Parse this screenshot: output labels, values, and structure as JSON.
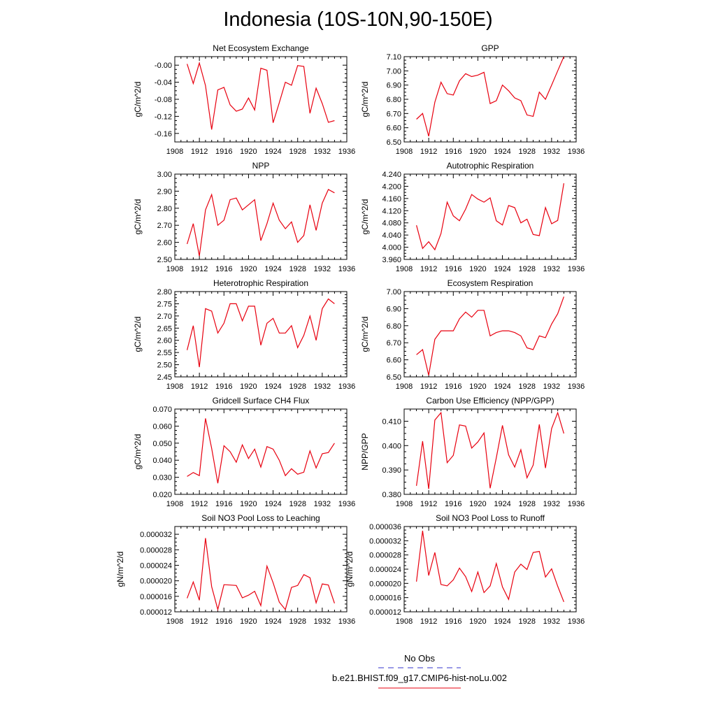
{
  "title": "Indonesia (10S-10N,90-150E)",
  "x_ticks": [
    1908,
    1912,
    1916,
    1920,
    1924,
    1928,
    1932,
    1936
  ],
  "x_range": [
    1908,
    1936
  ],
  "years": [
    1910,
    1911,
    1912,
    1913,
    1914,
    1915,
    1916,
    1917,
    1918,
    1919,
    1920,
    1921,
    1922,
    1923,
    1924,
    1925,
    1926,
    1927,
    1928,
    1929,
    1930,
    1931,
    1932,
    1933,
    1934
  ],
  "line_color": "#e8000f",
  "legend": {
    "obs_label": "No Obs",
    "obs_color": "#3333cc",
    "model_label": "b.e21.BHIST.f09_g17.CMIP6-hist-noLu.002",
    "model_color": "#e8000f"
  },
  "chart_data": [
    {
      "type": "line",
      "title": "Net Ecosystem Exchange",
      "ylabel": "gC/m^2/d",
      "ylim": [
        -0.18,
        0.02
      ],
      "yticks": [
        -0.16,
        -0.12,
        -0.08,
        -0.04,
        -0.0
      ],
      "ytick_labels": [
        "-0.16",
        "-0.12",
        "-0.08",
        "-0.04",
        "-0.00"
      ],
      "values": [
        0.003,
        -0.043,
        0.005,
        -0.048,
        -0.151,
        -0.058,
        -0.052,
        -0.093,
        -0.108,
        -0.103,
        -0.077,
        -0.105,
        -0.007,
        -0.012,
        -0.135,
        -0.088,
        -0.04,
        -0.047,
        -0.001,
        -0.003,
        -0.113,
        -0.054,
        -0.09,
        -0.134,
        -0.13
      ]
    },
    {
      "type": "line",
      "title": "GPP",
      "ylabel": "gC/m^2/d",
      "ylim": [
        6.5,
        7.1
      ],
      "yticks": [
        6.5,
        6.6,
        6.7,
        6.8,
        6.9,
        7.0,
        7.1
      ],
      "ytick_labels": [
        "6.50",
        "6.60",
        "6.70",
        "6.80",
        "6.90",
        "7.00",
        "7.10"
      ],
      "values": [
        6.66,
        6.7,
        6.54,
        6.78,
        6.92,
        6.84,
        6.83,
        6.93,
        6.98,
        6.96,
        6.97,
        6.99,
        6.77,
        6.79,
        6.9,
        6.86,
        6.81,
        6.79,
        6.69,
        6.68,
        6.85,
        6.8,
        6.9,
        7.0,
        7.1
      ]
    },
    {
      "type": "line",
      "title": "NPP",
      "ylabel": "gC/m^2/d",
      "ylim": [
        2.5,
        3.0
      ],
      "yticks": [
        2.5,
        2.6,
        2.7,
        2.8,
        2.9,
        3.0
      ],
      "ytick_labels": [
        "2.50",
        "2.60",
        "2.70",
        "2.80",
        "2.90",
        "3.00"
      ],
      "values": [
        2.59,
        2.71,
        2.52,
        2.79,
        2.88,
        2.7,
        2.73,
        2.85,
        2.86,
        2.79,
        2.82,
        2.85,
        2.61,
        2.71,
        2.83,
        2.73,
        2.68,
        2.72,
        2.6,
        2.64,
        2.82,
        2.67,
        2.83,
        2.91,
        2.89
      ]
    },
    {
      "type": "line",
      "title": "Autotrophic Respiration",
      "ylabel": "gC/m^2/d",
      "ylim": [
        3.96,
        4.24
      ],
      "yticks": [
        3.96,
        4.0,
        4.04,
        4.08,
        4.12,
        4.16,
        4.2,
        4.24
      ],
      "ytick_labels": [
        "3.960",
        "4.000",
        "4.040",
        "4.080",
        "4.120",
        "4.160",
        "4.200",
        "4.240"
      ],
      "values": [
        4.072,
        3.996,
        4.018,
        3.992,
        4.045,
        4.148,
        4.103,
        4.087,
        4.125,
        4.173,
        4.158,
        4.148,
        4.162,
        4.087,
        4.073,
        4.137,
        4.13,
        4.08,
        4.092,
        4.042,
        4.038,
        4.13,
        4.077,
        4.088,
        4.21
      ]
    },
    {
      "type": "line",
      "title": "Heterotrophic Respiration",
      "ylabel": "gC/m^2/d",
      "ylim": [
        2.45,
        2.8
      ],
      "yticks": [
        2.45,
        2.5,
        2.55,
        2.6,
        2.65,
        2.7,
        2.75,
        2.8
      ],
      "ytick_labels": [
        "2.45",
        "2.50",
        "2.55",
        "2.60",
        "2.65",
        "2.70",
        "2.75",
        "2.80"
      ],
      "values": [
        2.56,
        2.66,
        2.49,
        2.73,
        2.72,
        2.63,
        2.67,
        2.75,
        2.75,
        2.68,
        2.74,
        2.74,
        2.58,
        2.67,
        2.69,
        2.63,
        2.63,
        2.66,
        2.57,
        2.62,
        2.7,
        2.6,
        2.73,
        2.77,
        2.75
      ]
    },
    {
      "type": "line",
      "title": "Ecosystem Respiration",
      "ylabel": "gC/m^2/d",
      "ylim": [
        6.5,
        7.0
      ],
      "yticks": [
        6.5,
        6.6,
        6.7,
        6.8,
        6.9,
        7.0
      ],
      "ytick_labels": [
        "6.50",
        "6.60",
        "6.70",
        "6.80",
        "6.90",
        "7.00"
      ],
      "values": [
        6.63,
        6.66,
        6.51,
        6.72,
        6.77,
        6.77,
        6.77,
        6.84,
        6.88,
        6.85,
        6.89,
        6.89,
        6.74,
        6.76,
        6.77,
        6.77,
        6.76,
        6.74,
        6.67,
        6.66,
        6.74,
        6.73,
        6.81,
        6.87,
        6.97
      ]
    },
    {
      "type": "line",
      "title": "Gridcell Surface CH4 Flux",
      "ylabel": "gC/m^2/d",
      "ylim": [
        0.02,
        0.07
      ],
      "yticks": [
        0.02,
        0.03,
        0.04,
        0.05,
        0.06,
        0.07
      ],
      "ytick_labels": [
        "0.020",
        "0.030",
        "0.040",
        "0.050",
        "0.060",
        "0.070"
      ],
      "values": [
        0.0305,
        0.0328,
        0.031,
        0.0645,
        0.047,
        0.0265,
        0.0485,
        0.045,
        0.0388,
        0.049,
        0.041,
        0.0465,
        0.036,
        0.048,
        0.0465,
        0.04,
        0.031,
        0.035,
        0.0318,
        0.033,
        0.0455,
        0.0355,
        0.0438,
        0.0445,
        0.05
      ]
    },
    {
      "type": "line",
      "title": "Carbon Use Efficiency (NPP/GPP)",
      "ylabel": "NPP/GPP",
      "ylim": [
        0.38,
        0.415
      ],
      "yticks": [
        0.38,
        0.39,
        0.4,
        0.41
      ],
      "ytick_labels": [
        "0.380",
        "0.390",
        "0.400",
        "0.410"
      ],
      "values": [
        0.3835,
        0.4018,
        0.3822,
        0.4105,
        0.4135,
        0.393,
        0.396,
        0.4085,
        0.408,
        0.399,
        0.4015,
        0.4052,
        0.3825,
        0.395,
        0.4083,
        0.3962,
        0.3912,
        0.3983,
        0.3868,
        0.392,
        0.4087,
        0.3908,
        0.407,
        0.4135,
        0.405
      ]
    },
    {
      "type": "line",
      "title": "Soil NO3 Pool Loss to Leaching",
      "ylabel": "gN/m^2/d",
      "ylim": [
        1.2e-05,
        3.4e-05
      ],
      "yticks": [
        1.2e-05,
        1.6e-05,
        2e-05,
        2.4e-05,
        2.8e-05,
        3.2e-05
      ],
      "ytick_labels": [
        "0.000012",
        "0.000016",
        "0.000020",
        "0.000024",
        "0.000028",
        "0.000032"
      ],
      "values": [
        1.55e-05,
        1.97e-05,
        1.5e-05,
        3.1e-05,
        1.85e-05,
        1.26e-05,
        1.9e-05,
        1.89e-05,
        1.88e-05,
        1.56e-05,
        1.63e-05,
        1.73e-05,
        1.36e-05,
        2.38e-05,
        1.95e-05,
        1.45e-05,
        1.26e-05,
        1.83e-05,
        1.88e-05,
        2.16e-05,
        2.08e-05,
        1.43e-05,
        1.92e-05,
        1.89e-05,
        1.42e-05
      ]
    },
    {
      "type": "line",
      "title": "Soil NO3 Pool Loss to Runoff",
      "ylabel": "gN/m^2/d",
      "ylim": [
        1.2e-05,
        3.6e-05
      ],
      "yticks": [
        1.2e-05,
        1.6e-05,
        2e-05,
        2.4e-05,
        2.8e-05,
        3.2e-05,
        3.6e-05
      ],
      "ytick_labels": [
        "0.000012",
        "0.000016",
        "0.000020",
        "0.000024",
        "0.000028",
        "0.000032",
        "0.000036"
      ],
      "values": [
        2.05e-05,
        3.48e-05,
        2.22e-05,
        2.87e-05,
        1.97e-05,
        1.93e-05,
        2.1e-05,
        2.43e-05,
        2.19e-05,
        1.77e-05,
        2.32e-05,
        1.74e-05,
        1.93e-05,
        2.56e-05,
        1.9e-05,
        1.55e-05,
        2.32e-05,
        2.54e-05,
        2.39e-05,
        2.87e-05,
        2.9e-05,
        2.18e-05,
        2.41e-05,
        1.92e-05,
        1.48e-05
      ]
    }
  ]
}
